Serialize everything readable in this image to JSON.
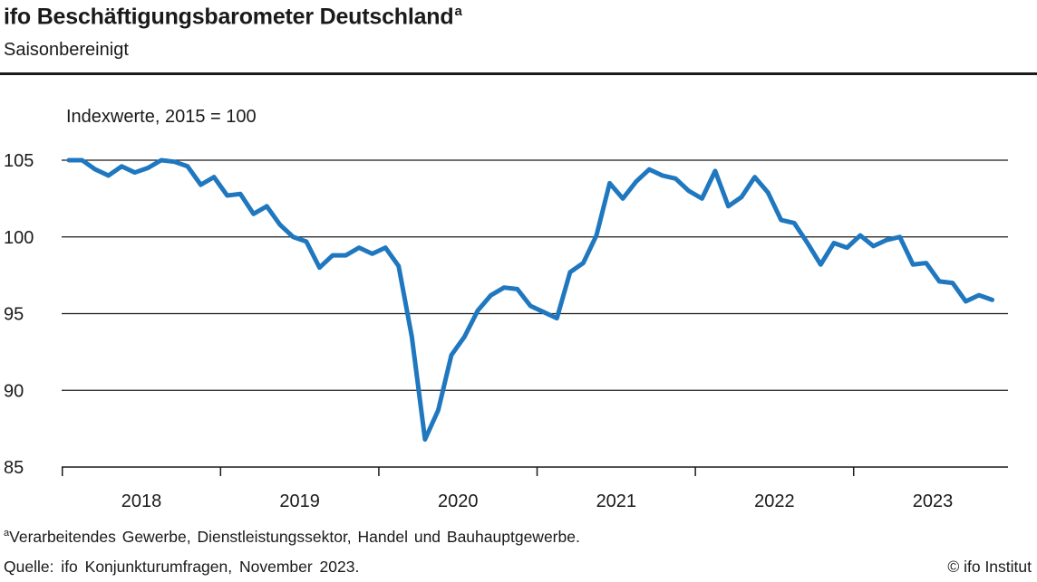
{
  "header": {
    "title": "ifo Beschäftigungsbarometer Deutschland",
    "title_marker": "a",
    "subtitle": "Saisonbereinigt"
  },
  "footer": {
    "footnote_marker": "a",
    "footnote": "Verarbeitendes Gewerbe, Dienstleistungssektor, Handel und Bauhauptgewerbe.",
    "source": "Quelle: ifo Konjunkturumfragen, November 2023.",
    "copyright": "© ifo Institut"
  },
  "chart_data": {
    "type": "line",
    "title": "ifo Beschäftigungsbarometer Deutschland",
    "subtitle": "Saisonbereinigt",
    "ylabel": "Indexwerte, 2015 = 100",
    "xlabel": "",
    "ylim": [
      85,
      105
    ],
    "yticks": [
      85,
      90,
      95,
      100,
      105
    ],
    "grid": "horizontal",
    "legend": "none",
    "line_color": "#1f78bf",
    "x_year_labels": [
      "2018",
      "2019",
      "2020",
      "2021",
      "2022",
      "2023"
    ],
    "x_start": "2018-01",
    "x_end": "2023-11",
    "series": [
      {
        "x": [
          "2018-01",
          "2018-02",
          "2018-03",
          "2018-04",
          "2018-05",
          "2018-06",
          "2018-07",
          "2018-08",
          "2018-09",
          "2018-10",
          "2018-11",
          "2018-12",
          "2019-01",
          "2019-02",
          "2019-03",
          "2019-04",
          "2019-05",
          "2019-06",
          "2019-07",
          "2019-08",
          "2019-09",
          "2019-10",
          "2019-11",
          "2019-12",
          "2020-01",
          "2020-02",
          "2020-03",
          "2020-04",
          "2020-05",
          "2020-06",
          "2020-07",
          "2020-08",
          "2020-09",
          "2020-10",
          "2020-11",
          "2020-12",
          "2021-01",
          "2021-02",
          "2021-03",
          "2021-04",
          "2021-05",
          "2021-06",
          "2021-07",
          "2021-08",
          "2021-09",
          "2021-10",
          "2021-11",
          "2021-12",
          "2022-01",
          "2022-02",
          "2022-03",
          "2022-04",
          "2022-05",
          "2022-06",
          "2022-07",
          "2022-08",
          "2022-09",
          "2022-10",
          "2022-11",
          "2022-12",
          "2023-01",
          "2023-02",
          "2023-03",
          "2023-04",
          "2023-05",
          "2023-06",
          "2023-07",
          "2023-08",
          "2023-09",
          "2023-10",
          "2023-11"
        ],
        "values": [
          105.0,
          105.0,
          104.4,
          104.0,
          104.6,
          104.2,
          104.5,
          105.0,
          104.9,
          104.6,
          103.4,
          103.9,
          102.7,
          102.8,
          101.5,
          102.0,
          100.8,
          100.0,
          99.7,
          98.0,
          98.8,
          98.8,
          99.3,
          98.9,
          99.3,
          98.1,
          93.5,
          86.8,
          88.7,
          92.3,
          93.5,
          95.2,
          96.2,
          96.7,
          96.6,
          95.5,
          95.1,
          94.7,
          97.7,
          98.3,
          100.1,
          103.5,
          102.5,
          103.6,
          104.4,
          104.0,
          103.8,
          103.0,
          102.5,
          104.3,
          102.0,
          102.6,
          103.9,
          102.9,
          101.1,
          100.9,
          99.6,
          98.2,
          99.6,
          99.3,
          100.1,
          99.4,
          99.8,
          100.0,
          98.2,
          98.3,
          97.1,
          97.0,
          95.8,
          96.2,
          95.9
        ]
      }
    ]
  }
}
